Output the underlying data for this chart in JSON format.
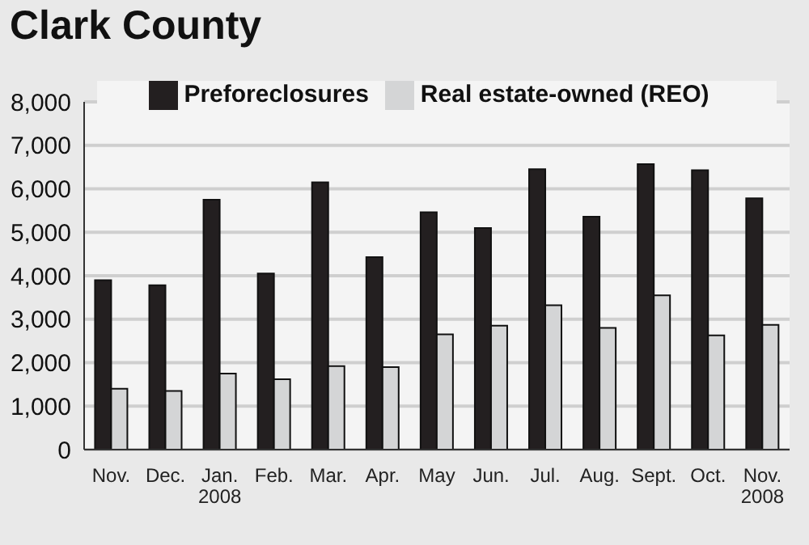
{
  "chart_data": {
    "type": "bar",
    "title": "Clark County",
    "categories": [
      "Nov.",
      "Dec.",
      "Jan. 2008",
      "Feb.",
      "Mar.",
      "Apr.",
      "May",
      "Jun.",
      "Jul.",
      "Aug.",
      "Sept.",
      "Oct.",
      "Nov. 2008"
    ],
    "series": [
      {
        "name": "Preforeclosures",
        "color": "#231f20",
        "values": [
          3900,
          3780,
          5750,
          4050,
          6150,
          4430,
          5460,
          5100,
          6450,
          5360,
          6570,
          6430,
          5780
        ]
      },
      {
        "name": "Real estate-owned (REO)",
        "color": "#d4d5d6",
        "values": [
          1400,
          1350,
          1750,
          1620,
          1920,
          1900,
          2650,
          2850,
          3320,
          2800,
          3550,
          2630,
          2870
        ]
      }
    ],
    "ylim": [
      0,
      8000
    ],
    "yticks": [
      {
        "value": 0,
        "label": "0"
      },
      {
        "value": 1000,
        "label": "1,000"
      },
      {
        "value": 2000,
        "label": "2,000"
      },
      {
        "value": 3000,
        "label": "3,000"
      },
      {
        "value": 4000,
        "label": "4,000"
      },
      {
        "value": 5000,
        "label": "5,000"
      },
      {
        "value": 6000,
        "label": "6,000"
      },
      {
        "value": 7000,
        "label": "7,000"
      },
      {
        "value": 8000,
        "label": "8,000"
      }
    ],
    "grid": "y",
    "legend": "top"
  }
}
